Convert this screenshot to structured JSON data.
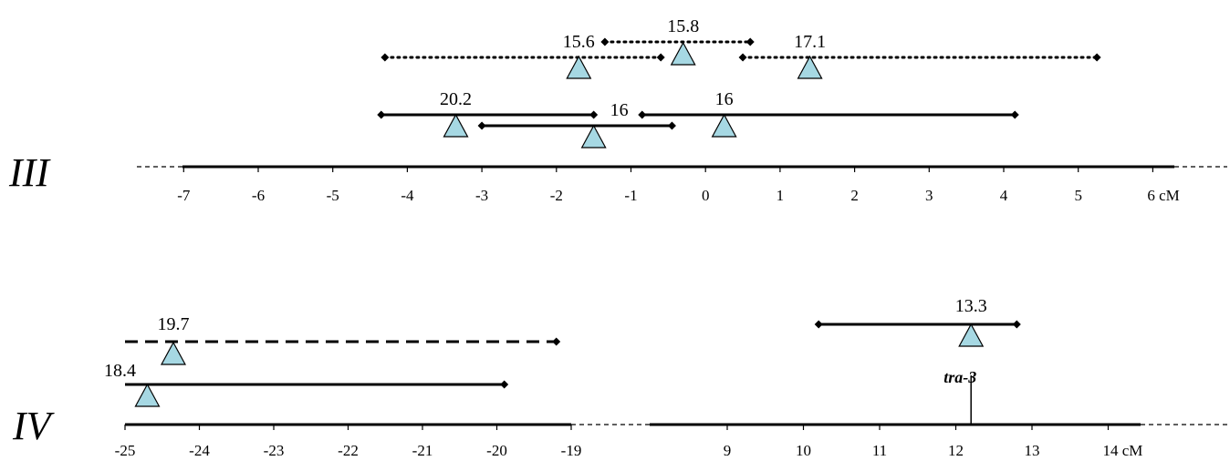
{
  "colors": {
    "line": "#000000",
    "peak_fill": "#a6d8e3",
    "peak_stroke": "#000000"
  },
  "chromosomes": [
    {
      "id": "III",
      "label": "III",
      "ticks": [
        {
          "value": -7,
          "label": "-7"
        },
        {
          "value": -6,
          "label": "-6"
        },
        {
          "value": -5,
          "label": "-5"
        },
        {
          "value": -4,
          "label": "-4"
        },
        {
          "value": -3,
          "label": "-3"
        },
        {
          "value": -2,
          "label": "-2"
        },
        {
          "value": -1,
          "label": "-1"
        },
        {
          "value": 0,
          "label": "0"
        },
        {
          "value": 1,
          "label": "1"
        },
        {
          "value": 2,
          "label": "2"
        },
        {
          "value": 3,
          "label": "3"
        },
        {
          "value": 4,
          "label": "4"
        },
        {
          "value": 5,
          "label": "5"
        },
        {
          "value": 6,
          "label": "6 cM"
        }
      ],
      "qtls": [
        {
          "label": "15.6",
          "start": -4.3,
          "end": -0.6,
          "peak": -1.7,
          "style": "dotted"
        },
        {
          "label": "15.8",
          "start": -1.35,
          "end": 0.6,
          "peak": -0.3,
          "style": "dotted"
        },
        {
          "label": "17.1",
          "start": 0.5,
          "end": 5.25,
          "peak": 1.4,
          "style": "dotted"
        },
        {
          "label": "20.2",
          "start": -4.35,
          "end": -1.5,
          "peak": -3.35,
          "style": "solid"
        },
        {
          "label": "16",
          "start": -3.0,
          "end": -0.45,
          "peak": -1.5,
          "style": "solid"
        },
        {
          "label": "16",
          "start": -0.85,
          "end": 4.15,
          "peak": 0.25,
          "style": "solid"
        }
      ]
    },
    {
      "id": "IV",
      "label": "IV",
      "ticks": [
        {
          "value": -25,
          "label": "-25"
        },
        {
          "value": -24,
          "label": "-24"
        },
        {
          "value": -23,
          "label": "-23"
        },
        {
          "value": -22,
          "label": "-22"
        },
        {
          "value": -21,
          "label": "-21"
        },
        {
          "value": -20,
          "label": "-20"
        },
        {
          "value": -19,
          "label": "-19"
        },
        {
          "value": 9,
          "label": "9"
        },
        {
          "value": 10,
          "label": "10"
        },
        {
          "value": 11,
          "label": "11"
        },
        {
          "value": 12,
          "label": "12"
        },
        {
          "value": 13,
          "label": "13"
        },
        {
          "value": 14,
          "label": "14 cM"
        }
      ],
      "qtls": [
        {
          "label": "19.7",
          "start": -25.0,
          "end": -19.2,
          "peak": -24.35,
          "style": "dashed"
        },
        {
          "label": "18.4",
          "start": -25.0,
          "end": -19.9,
          "peak": -24.7,
          "style": "solid"
        },
        {
          "label": "13.3",
          "start": 10.2,
          "end": 12.8,
          "peak": 12.2,
          "style": "solid"
        }
      ],
      "genes": [
        {
          "label": "tra-3",
          "position": 12.2
        }
      ]
    }
  ]
}
